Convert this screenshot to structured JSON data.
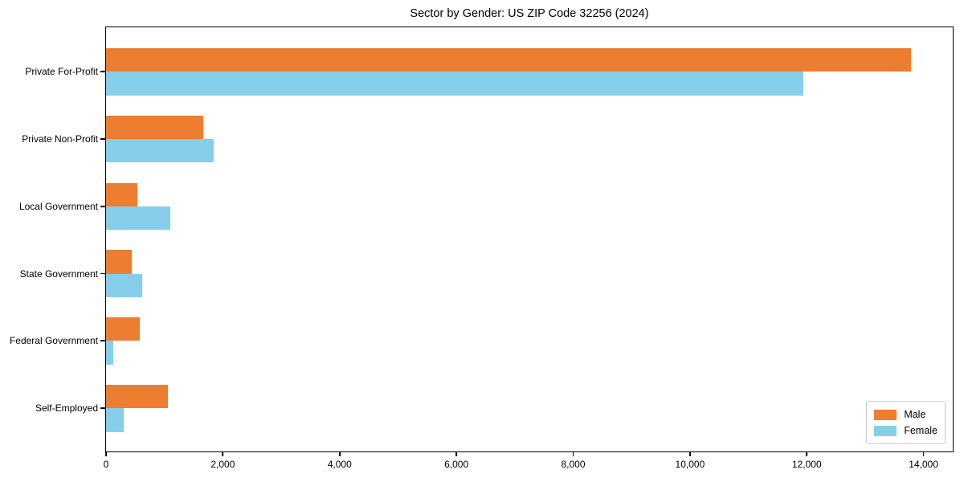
{
  "chart_data": {
    "type": "bar",
    "orientation": "horizontal",
    "title": "Sector by Gender: US ZIP Code 32256 (2024)",
    "categories": [
      "Private For-Profit",
      "Private Non-Profit",
      "Local Government",
      "State Government",
      "Federal Government",
      "Self-Employed"
    ],
    "series": [
      {
        "name": "Male",
        "color": "#ED7D31",
        "values": [
          13780,
          1660,
          535,
          435,
          580,
          1065
        ]
      },
      {
        "name": "Female",
        "color": "#87CEEB",
        "values": [
          11940,
          1850,
          1095,
          620,
          125,
          300
        ]
      }
    ],
    "xlabel": "",
    "ylabel": "",
    "xlim": [
      0,
      14500
    ],
    "x_ticks": [
      0,
      2000,
      4000,
      6000,
      8000,
      10000,
      12000,
      14000
    ],
    "x_tick_labels": [
      "0",
      "2,000",
      "4,000",
      "6,000",
      "8,000",
      "10,000",
      "12,000",
      "14,000"
    ],
    "grid": false,
    "legend": {
      "position": "lower right",
      "entries": [
        "Male",
        "Female"
      ]
    }
  }
}
